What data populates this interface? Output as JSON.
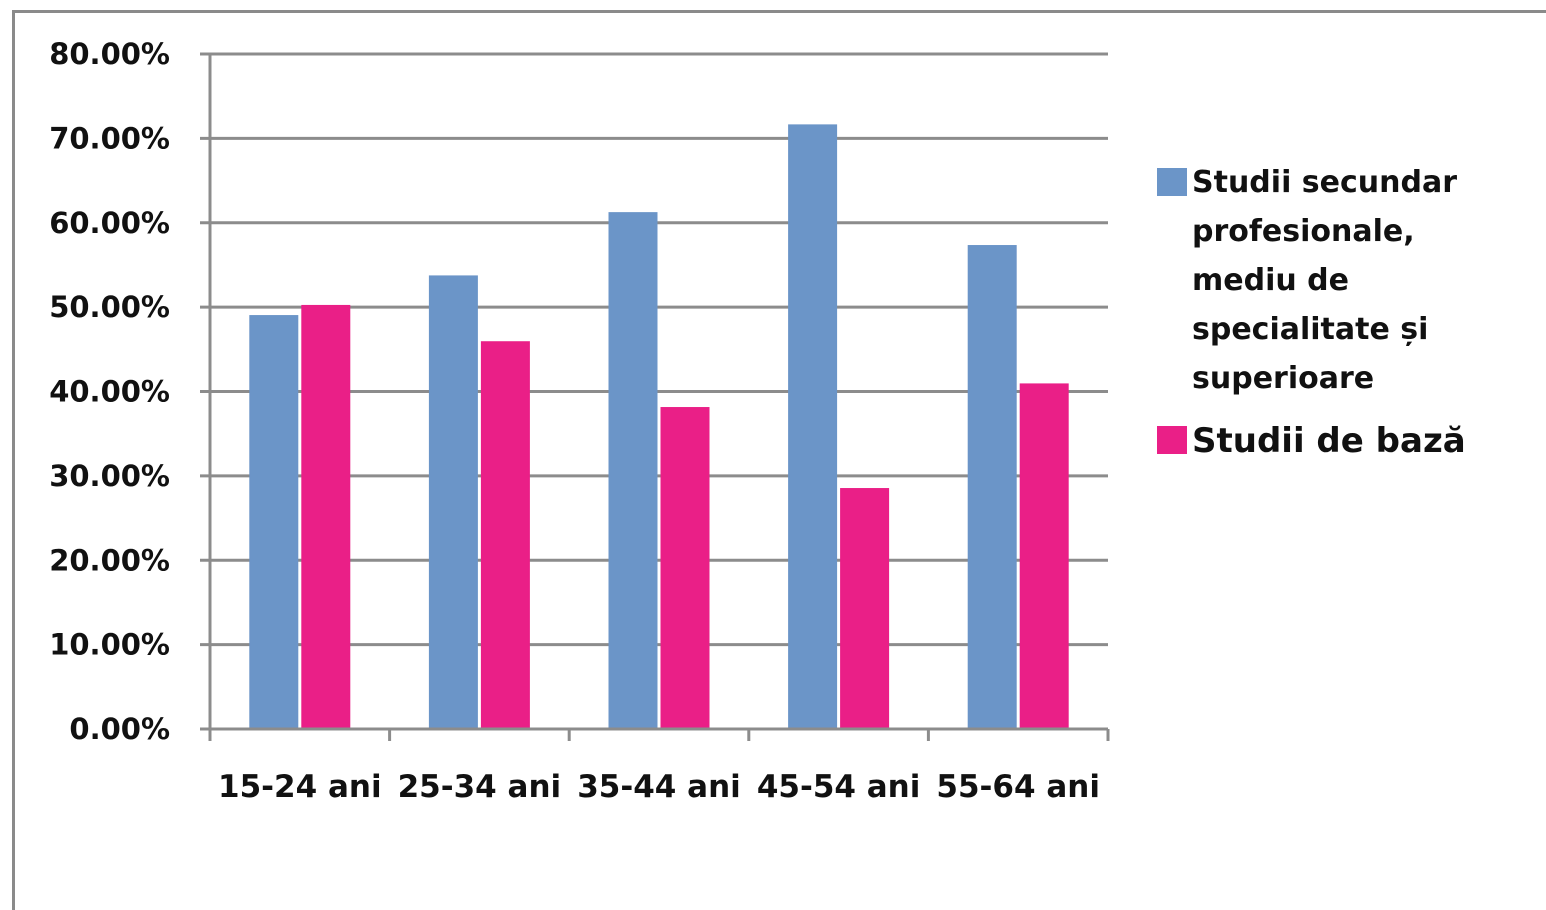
{
  "chart_data": {
    "type": "bar",
    "categories": [
      "15-24 ani",
      "25-34 ani",
      "35-44 ani",
      "45-54 ani",
      "55-64 ani"
    ],
    "series": [
      {
        "name": "Studii secundar profesionale, mediu de specialitate și superioare",
        "name_lines": [
          "Studii secundar",
          "profesionale,",
          "mediu de",
          "specialitate și",
          "superioare"
        ],
        "color": "#6b95c8",
        "values": [
          49.0,
          53.7,
          61.2,
          71.6,
          57.3
        ]
      },
      {
        "name": "Studii de bază",
        "name_lines": [
          "Studii de bază"
        ],
        "color": "#ea1f87",
        "values": [
          50.2,
          45.9,
          38.1,
          28.5,
          40.9
        ]
      }
    ],
    "y_ticks": [
      "0.00%",
      "10.00%",
      "20.00%",
      "30.00%",
      "40.00%",
      "50.00%",
      "60.00%",
      "70.00%",
      "80.00%"
    ],
    "ylim": [
      0,
      80
    ],
    "grid": true,
    "legend_position": "right",
    "title": "",
    "xlabel": "",
    "ylabel": ""
  }
}
